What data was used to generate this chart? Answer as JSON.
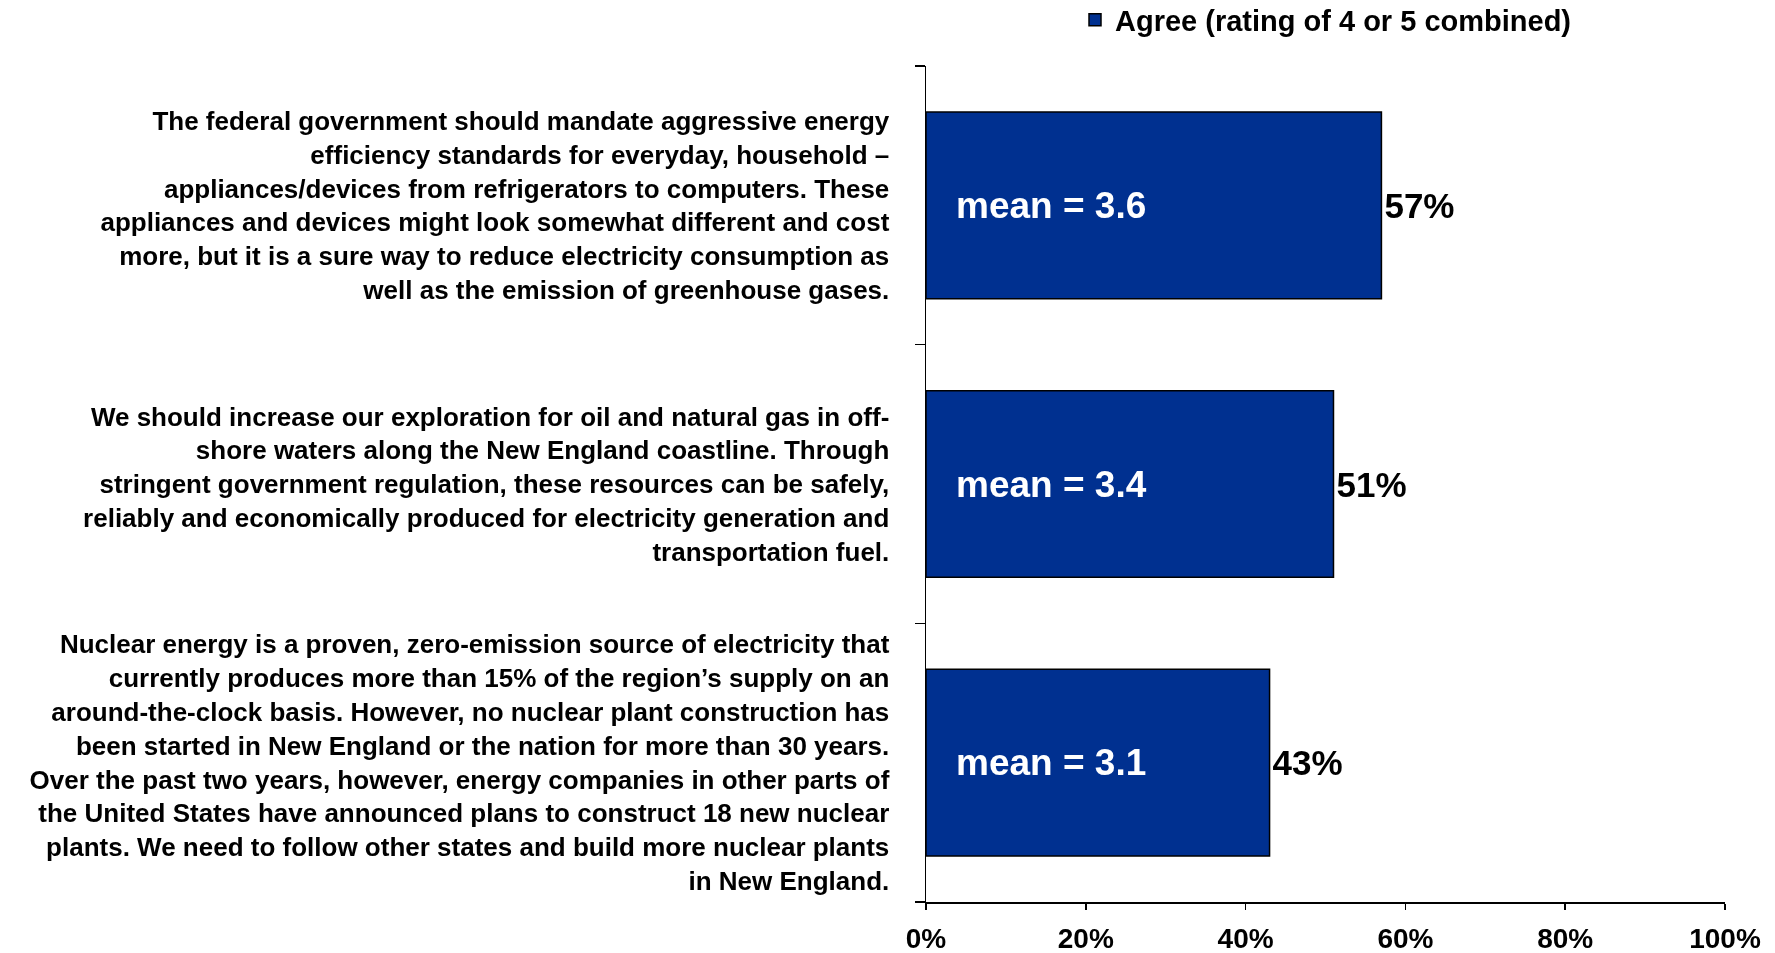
{
  "chart_data": {
    "type": "bar",
    "orientation": "horizontal",
    "categories": [
      "The federal government should mandate aggressive energy\nefficiency standards for everyday, household –\nappliances/devices from refrigerators to computers. These\nappliances and devices might look somewhat different and cost\nmore, but it is a sure way to reduce electricity consumption as\nwell as the emission of greenhouse gases.",
      "We should increase our exploration for oil and natural gas in off-\nshore waters along the New England coastline. Through\nstringent government regulation, these resources can be safely,\nreliably and economically produced for electricity generation and\ntransportation fuel.",
      "Nuclear energy is a proven, zero-emission source of electricity that\ncurrently produces more than 15% of the region’s supply on an\naround-the-clock basis. However, no nuclear plant construction has\nbeen started in New England or the nation for more than 30 years.\nOver the past two years, however, energy companies in other parts of\nthe United States have announced plans to construct 18 new nuclear\nplants. We need to follow other states and build more nuclear plants\nin New England."
    ],
    "series": [
      {
        "name": "Agree (rating of 4 or 5 combined)",
        "color": "#003090",
        "values": [
          57,
          51,
          43
        ],
        "value_labels": [
          "57%",
          "51%",
          "43%"
        ]
      }
    ],
    "xlim": [
      0,
      100
    ],
    "xticks": [
      {
        "value": 0,
        "label": "0%"
      },
      {
        "value": 20,
        "label": "20%"
      },
      {
        "value": 40,
        "label": "40%"
      },
      {
        "value": 60,
        "label": "60%"
      },
      {
        "value": 80,
        "label": "80%"
      },
      {
        "value": 100,
        "label": "100%"
      }
    ],
    "legend": "top",
    "annotations": [
      "mean = 3.6",
      "mean = 3.4",
      "mean = 3.1"
    ]
  }
}
